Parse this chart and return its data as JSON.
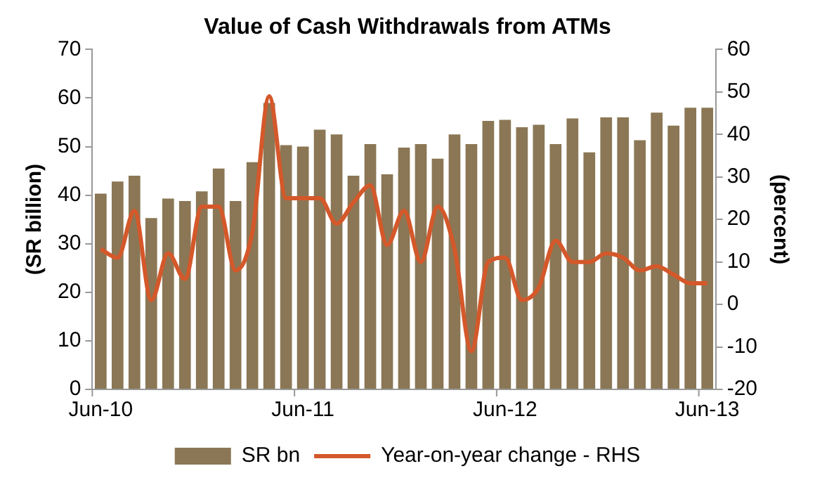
{
  "chart_data": {
    "type": "bar",
    "title": "Value of Cash Withdrawals from ATMs",
    "ylabel": "(SR billion)",
    "y2label": "(percent)",
    "categories": [
      "Jun-10",
      null,
      null,
      null,
      null,
      null,
      null,
      null,
      null,
      null,
      null,
      null,
      "Jun-11",
      null,
      null,
      null,
      null,
      null,
      null,
      null,
      null,
      null,
      null,
      null,
      "Jun-12",
      null,
      null,
      null,
      null,
      null,
      null,
      null,
      null,
      null,
      null,
      null,
      "Jun-13"
    ],
    "series": [
      {
        "name": "SR bn",
        "color": "#8b7755",
        "values": [
          40.3,
          42.8,
          44,
          35.3,
          39.3,
          38.8,
          40.8,
          45.5,
          38.8,
          46.8,
          59,
          50.3,
          50,
          53.5,
          52.5,
          44,
          50.5,
          44.3,
          49.8,
          50.5,
          47.5,
          52.5,
          50.5,
          55.3,
          55.5,
          54,
          54.5,
          50.5,
          55.8,
          48.8,
          56,
          56,
          51.3,
          57,
          54.3,
          58,
          58
        ]
      },
      {
        "name": "Year-on-year change - RHS",
        "type": "line",
        "axis": "y2",
        "color": "#d4582a",
        "values": [
          13,
          11,
          22,
          1,
          12,
          6,
          23,
          23,
          8,
          17,
          49,
          25,
          25,
          25,
          19,
          24,
          28,
          14,
          22,
          10,
          23,
          13,
          -11,
          10,
          11,
          1,
          4,
          15,
          10,
          10,
          12,
          11,
          8,
          9,
          7,
          5,
          5
        ]
      }
    ],
    "ylim": [
      0,
      70
    ],
    "yticks": [
      0,
      10,
      20,
      30,
      40,
      50,
      60,
      70
    ],
    "y2lim": [
      -20,
      60
    ],
    "y2ticks": [
      -20,
      -10,
      0,
      10,
      20,
      30,
      40,
      50,
      60
    ],
    "grid": false,
    "legend": "bottom",
    "marker": "none",
    "line_style": "solid"
  }
}
